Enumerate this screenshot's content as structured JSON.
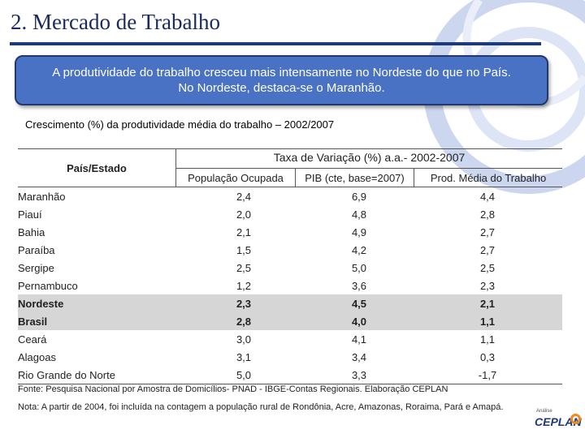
{
  "slide": {
    "title": "2. Mercado de Trabalho",
    "callout_line1": "A produtividade do trabalho cresceu mais intensamente no Nordeste do que no País.",
    "callout_line2": "No Nordeste, destaca-se o Maranhão.",
    "subtitle": "Crescimento (%) da produtividade média do trabalho – 2002/2007"
  },
  "table": {
    "col_region": "País/Estado",
    "group_header": "Taxa de Variação (%) a.a.- 2002-2007",
    "col1": "População Ocupada",
    "col2": "PIB (cte, base=2007)",
    "col3": "Prod. Média do Trabalho",
    "rows": [
      {
        "name": "Maranhão",
        "pop": "2,4",
        "pib": "6,9",
        "prod": "4,4"
      },
      {
        "name": "Piauí",
        "pop": "2,0",
        "pib": "4,8",
        "prod": "2,8"
      },
      {
        "name": "Bahia",
        "pop": "2,1",
        "pib": "4,9",
        "prod": "2,7"
      },
      {
        "name": "Paraíba",
        "pop": "1,5",
        "pib": "4,2",
        "prod": "2,7"
      },
      {
        "name": "Sergipe",
        "pop": "2,5",
        "pib": "5,0",
        "prod": "2,5"
      },
      {
        "name": "Pernambuco",
        "pop": "1,2",
        "pib": "3,6",
        "prod": "2,3"
      },
      {
        "name": "Nordeste",
        "pop": "2,3",
        "pib": "4,5",
        "prod": "2,1"
      },
      {
        "name": "Brasil",
        "pop": "2,8",
        "pib": "4,0",
        "prod": "1,1"
      },
      {
        "name": "Ceará",
        "pop": "3,0",
        "pib": "4,1",
        "prod": "1,1"
      },
      {
        "name": "Alagoas",
        "pop": "3,1",
        "pib": "3,4",
        "prod": "0,3"
      },
      {
        "name": "Rio Grande do Norte",
        "pop": "5,0",
        "pib": "3,3",
        "prod": "-1,7"
      }
    ]
  },
  "notes": {
    "fonte": "Fonte: Pesquisa Nacional por Amostra de Domicílios- PNAD - IBGE-Contas Regionais. Elaboração CEPLAN",
    "nota": "Nota: A partir de 2004, foi incluída na contagem a população rural de  Rondônia, Acre, Amazonas, Roraima, Pará e Amapá."
  },
  "logo": {
    "small_text": "Análise",
    "brand": "CEPLAN"
  },
  "colors": {
    "callout_bg": "#4a72c4",
    "title_color": "#1b2a5c",
    "highlight_row": "#d6d6d6",
    "accent_orange": "#f08a1c"
  }
}
